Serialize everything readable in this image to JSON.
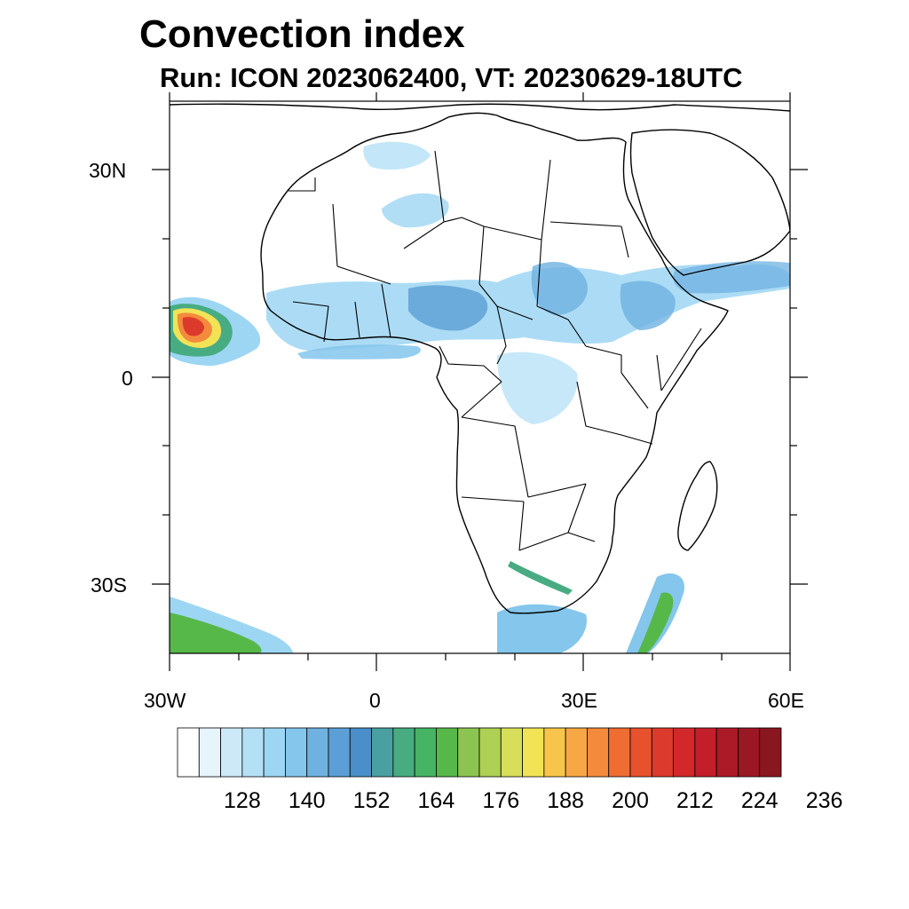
{
  "header": {
    "title": "Convection index",
    "subtitle": "Run: ICON 2023062400,  VT: 20230629-18UTC"
  },
  "map": {
    "lat_labels": [
      "30N",
      "0",
      "30S"
    ],
    "lon_labels": [
      "30W",
      "0",
      "30E",
      "60E"
    ],
    "lat_range": [
      -40,
      40
    ],
    "lon_range": [
      -30,
      60
    ],
    "land_color": "#ffffff",
    "border_color": "#000000"
  },
  "colorbar": {
    "labels": [
      "128",
      "140",
      "152",
      "164",
      "176",
      "188",
      "200",
      "212",
      "224",
      "236"
    ],
    "colors": [
      "#ffffff",
      "#e6f4fc",
      "#cde9f8",
      "#b4e0f6",
      "#9dd6f3",
      "#84c6ec",
      "#6fb2e1",
      "#5b9fd6",
      "#4a8fc9",
      "#4aa0a0",
      "#48ac82",
      "#45b464",
      "#57b84a",
      "#8cc451",
      "#aed054",
      "#d6de5a",
      "#f2e356",
      "#f8c54c",
      "#f7a744",
      "#f48a3c",
      "#ef6c33",
      "#e8512d",
      "#dc3a2c",
      "#d2282b",
      "#c21f2a",
      "#ad1a27",
      "#991824",
      "#8a1620"
    ]
  }
}
